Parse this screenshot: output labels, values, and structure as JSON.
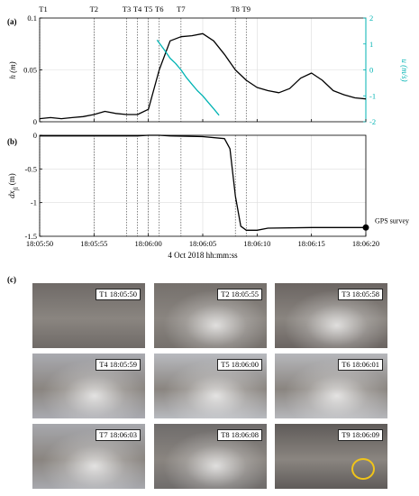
{
  "chart_data": [
    {
      "type": "line",
      "panel_label": "(a)",
      "ylabel_left": "h (m)",
      "ylabel_right": "u (m/s)",
      "ylim_left": [
        0,
        0.1
      ],
      "ylim_right": [
        -2,
        2
      ],
      "yticks_left": [
        "0",
        "0.05",
        "0.1"
      ],
      "yticks_right": [
        "-2",
        "-1",
        "0",
        "1",
        "2"
      ],
      "right_axis_color": "#00b3b3",
      "x_range_seconds": [
        "18:05:50",
        "18:06:20"
      ],
      "series": [
        {
          "axis": "left",
          "color": "#000000",
          "x": [
            "18:05:50",
            "18:05:51",
            "18:05:52",
            "18:05:53",
            "18:05:54",
            "18:05:55",
            "18:05:56",
            "18:05:57",
            "18:05:58",
            "18:05:59",
            "18:06:00",
            "18:06:01",
            "18:06:02",
            "18:06:03",
            "18:06:04",
            "18:06:05",
            "18:06:06",
            "18:06:07",
            "18:06:08",
            "18:06:09",
            "18:06:10",
            "18:06:11",
            "18:06:12",
            "18:06:13",
            "18:06:14",
            "18:06:15",
            "18:06:16",
            "18:06:17",
            "18:06:18",
            "18:06:19",
            "18:06:20"
          ],
          "y": [
            0.003,
            0.004,
            0.003,
            0.004,
            0.005,
            0.007,
            0.01,
            0.008,
            0.007,
            0.007,
            0.012,
            0.05,
            0.078,
            0.082,
            0.083,
            0.085,
            0.078,
            0.065,
            0.05,
            0.04,
            0.033,
            0.03,
            0.028,
            0.032,
            0.042,
            0.047,
            0.04,
            0.03,
            0.026,
            0.023,
            0.022
          ]
        },
        {
          "axis": "right",
          "color": "#00b3b3",
          "x": [
            "18:06:00.8",
            "18:06:01.5",
            "18:06:02",
            "18:06:02.5",
            "18:06:03",
            "18:06:03.5",
            "18:06:04",
            "18:06:04.5",
            "18:06:05",
            "18:06:05.5",
            "18:06:06",
            "18:06:06.5"
          ],
          "y": [
            1.15,
            0.75,
            0.45,
            0.25,
            0.0,
            -0.3,
            -0.55,
            -0.8,
            -1.0,
            -1.25,
            -1.5,
            -1.75
          ]
        }
      ],
      "vlines": [
        {
          "label": "T1",
          "time": "18:05:50"
        },
        {
          "label": "T2",
          "time": "18:05:55"
        },
        {
          "label": "T3",
          "time": "18:05:58"
        },
        {
          "label": "T4",
          "time": "18:05:59"
        },
        {
          "label": "T5",
          "time": "18:06:00"
        },
        {
          "label": "T6",
          "time": "18:06:01"
        },
        {
          "label": "T7",
          "time": "18:06:03"
        },
        {
          "label": "T8",
          "time": "18:06:08"
        },
        {
          "label": "T9",
          "time": "18:06:09"
        }
      ]
    },
    {
      "type": "line",
      "panel_label": "(b)",
      "ylabel": "dx",
      "ylabel_sub": "fi",
      "ylabel_unit": "(m)",
      "ylim": [
        -1.5,
        0
      ],
      "yticks": [
        "-1.5",
        "-1",
        "-0.5",
        "0"
      ],
      "xticks": [
        "18:05:50",
        "18:05:55",
        "18:06:00",
        "18:06:05",
        "18:06:10",
        "18:06:15",
        "18:06:20"
      ],
      "xlabel": "4 Oct 2018 hh:mm:ss",
      "series": [
        {
          "color": "#000000",
          "x": [
            "18:05:50",
            "18:05:55",
            "18:05:59",
            "18:06:00",
            "18:06:01",
            "18:06:02",
            "18:06:05",
            "18:06:07",
            "18:06:07.5",
            "18:06:08",
            "18:06:08.5",
            "18:06:09",
            "18:06:10",
            "18:06:11",
            "18:06:15",
            "18:06:20"
          ],
          "y": [
            -0.01,
            -0.01,
            -0.01,
            0.0,
            0.0,
            -0.01,
            -0.02,
            -0.05,
            -0.2,
            -0.9,
            -1.35,
            -1.41,
            -1.41,
            -1.38,
            -1.37,
            -1.37
          ]
        }
      ],
      "marker": {
        "time": "18:06:20",
        "value": -1.37,
        "label": "GPS survey"
      }
    }
  ],
  "panel_c": {
    "panel_label": "(c)",
    "photos": [
      {
        "label": "T1 18:05:50",
        "tone": "#6f6a67",
        "foam": false,
        "ring": false
      },
      {
        "label": "T2 18:05:55",
        "tone": "#75706c",
        "foam": true,
        "ring": false
      },
      {
        "label": "T3 18:05:58",
        "tone": "#6b6562",
        "foam": true,
        "ring": false
      },
      {
        "label": "T4 18:05:59",
        "tone": "#a9aab0",
        "foam": true,
        "ring": false
      },
      {
        "label": "T5 18:06:00",
        "tone": "#b8babf",
        "foam": true,
        "ring": false
      },
      {
        "label": "T6 18:06:01",
        "tone": "#b6b7bb",
        "foam": true,
        "ring": false
      },
      {
        "label": "T7 18:06:03",
        "tone": "#a7a8ad",
        "foam": true,
        "ring": false
      },
      {
        "label": "T8 18:06:08",
        "tone": "#6f6c6b",
        "foam": true,
        "ring": false
      },
      {
        "label": "T9 18:06:09",
        "tone": "#5f5b59",
        "foam": false,
        "ring": true
      }
    ]
  }
}
